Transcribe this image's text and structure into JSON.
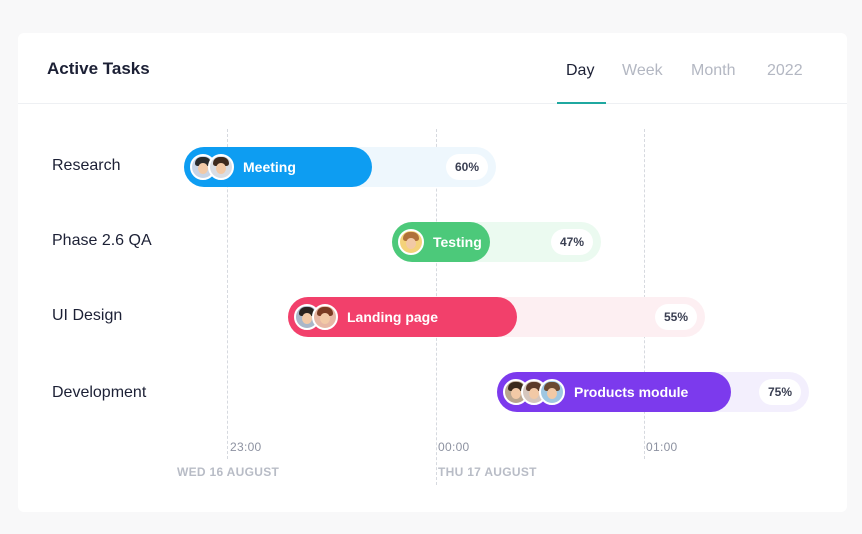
{
  "title": "Active Tasks",
  "tabs": [
    {
      "label": "Day",
      "active": true
    },
    {
      "label": "Week",
      "active": false
    },
    {
      "label": "Month",
      "active": false
    },
    {
      "label": "2022",
      "active": false
    }
  ],
  "rows": [
    {
      "label": "Research",
      "task": "Meeting",
      "percent": "60%",
      "color": "#0d9df2",
      "track_color": "#eef7fd",
      "avatar_count": 2
    },
    {
      "label": "Phase 2.6 QA",
      "task": "Testing",
      "percent": "47%",
      "color": "#4cc97a",
      "track_color": "#ebfaf0",
      "avatar_count": 1
    },
    {
      "label": "UI Design",
      "task": "Landing page",
      "percent": "55%",
      "color": "#f2406b",
      "track_color": "#fdeff2",
      "avatar_count": 2
    },
    {
      "label": "Development",
      "task": "Products module",
      "percent": "75%",
      "color": "#7c3aed",
      "track_color": "#f3effd",
      "avatar_count": 3
    }
  ],
  "timeline": {
    "times": [
      "23:00",
      "00:00",
      "01:00"
    ],
    "dates": [
      "WED 16 AUGUST",
      "THU 17 AUGUST"
    ]
  },
  "colors": {
    "tab_underline": "#1fa8a0"
  }
}
